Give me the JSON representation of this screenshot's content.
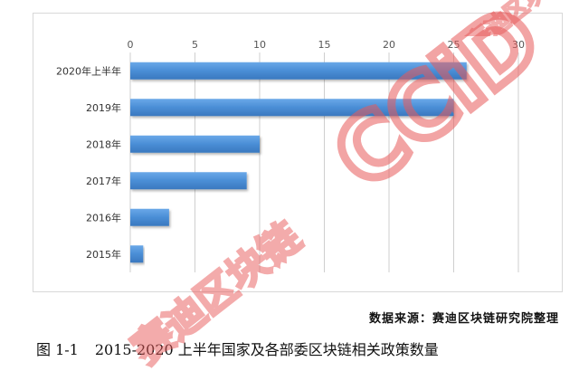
{
  "chart_data": {
    "type": "bar",
    "orientation": "horizontal",
    "categories": [
      "2020年上半年",
      "2019年",
      "2018年",
      "2017年",
      "2016年",
      "2015年"
    ],
    "values": [
      26,
      25,
      10,
      9,
      3,
      1
    ],
    "xlim": [
      0,
      30
    ],
    "x_ticks": [
      "0",
      "5",
      "10",
      "15",
      "20",
      "25",
      "30"
    ],
    "axis_position": "top",
    "grid": true,
    "bar_color": "#4a8ed6"
  },
  "source_note": "数据来源：赛迪区块链研究院整理",
  "caption": {
    "number": "图 1-1",
    "text": "2015-2020 上半年国家及各部委区块链相关政策数量"
  },
  "watermarks": {
    "logo_text": "CCiD",
    "brand_text": "赛迪区块链",
    "color": "#e85a5a"
  }
}
